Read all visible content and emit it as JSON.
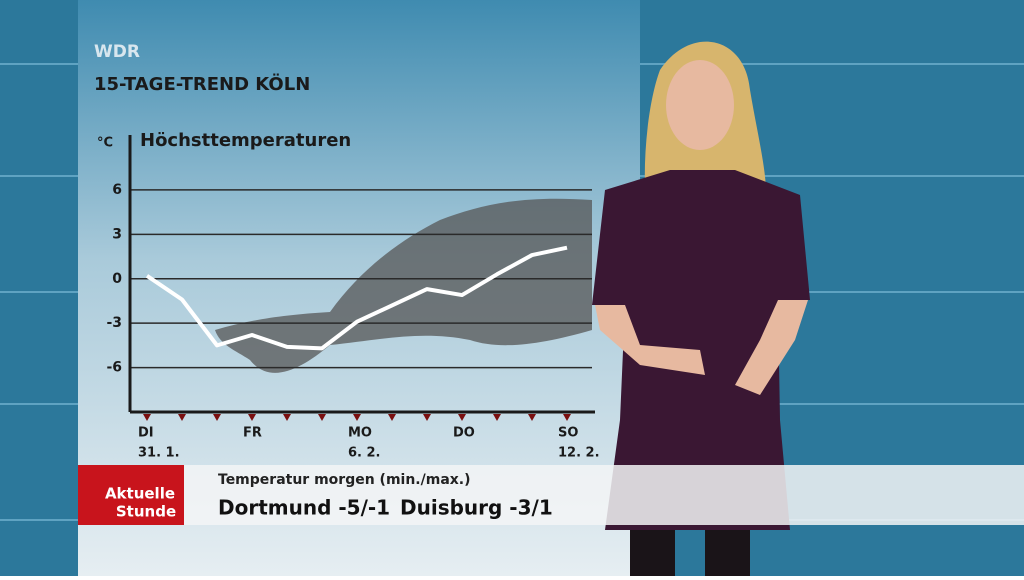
{
  "header": {
    "logo": "WDR",
    "title": "15-TAGE-TREND KÖLN"
  },
  "chart_data": {
    "type": "line",
    "title": "Höchsttemperaturen",
    "y_unit": "°C",
    "categories": [
      "DI",
      null,
      null,
      "FR",
      null,
      null,
      "MO",
      null,
      null,
      "DO",
      null,
      null,
      "SO"
    ],
    "dates": [
      "31. 1.",
      null,
      null,
      null,
      null,
      null,
      "6. 2.",
      null,
      null,
      null,
      null,
      null,
      "12. 2."
    ],
    "values": [
      0.2,
      -1.4,
      -4.5,
      -3.8,
      -4.6,
      -4.7,
      -2.9,
      -1.8,
      -0.7,
      -1.1,
      0.3,
      1.6,
      2.1
    ],
    "color": "#ffffff",
    "ylim": [
      -9,
      9
    ],
    "yticks": [
      -6,
      -3,
      0,
      3,
      6
    ],
    "grid": true
  },
  "ticker": {
    "brand": [
      "Aktuelle",
      "Stunde"
    ],
    "label": "Temperatur morgen (min./max.)",
    "items": [
      "Dortmund -5/-1",
      "Duisburg -3/1"
    ]
  }
}
